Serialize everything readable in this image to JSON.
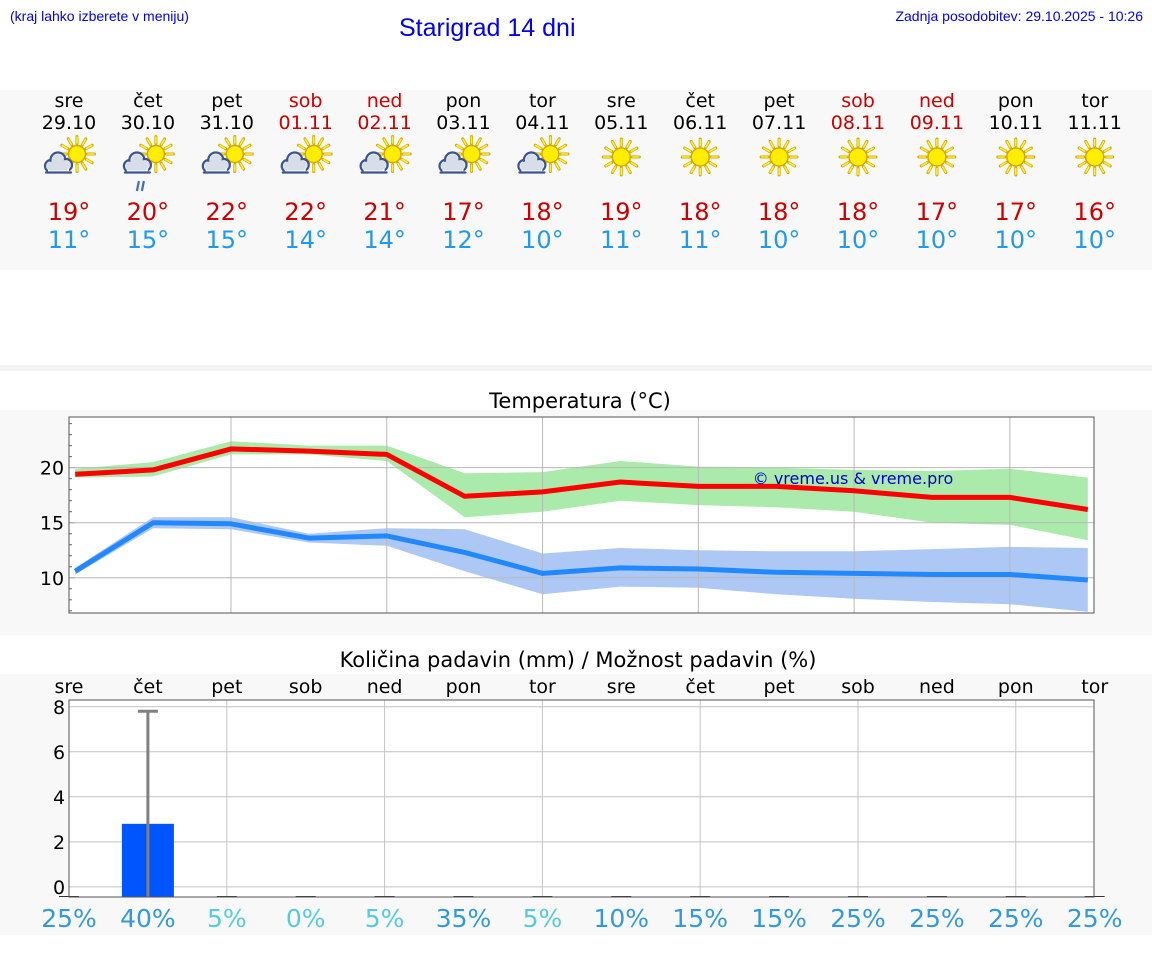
{
  "header": {
    "hint": "(kraj lahko izberete v meniju)",
    "title": "Starigrad 14 dni",
    "updated": "Zadnja posodobitev: 29.10.2025 - 10:26"
  },
  "colors": {
    "weekday": "#000000",
    "weekend": "#cc0000",
    "tmax": "#cc0000",
    "tmin": "#2299ee",
    "precip_bar": "#0055ff",
    "prob_low": "#55ccdd",
    "prob_high": "#3399dd",
    "watermark": "#0000cc"
  },
  "forecast": [
    {
      "day": "sre",
      "date": "29.10",
      "weekend": false,
      "icon": "sun-behind-cloud-icon",
      "tmax": "19°",
      "tmin": "11°"
    },
    {
      "day": "čet",
      "date": "30.10",
      "weekend": false,
      "icon": "sun-cloud-rain-icon",
      "tmax": "20°",
      "tmin": "15°"
    },
    {
      "day": "pet",
      "date": "31.10",
      "weekend": false,
      "icon": "sun-behind-cloud-icon",
      "tmax": "22°",
      "tmin": "15°"
    },
    {
      "day": "sob",
      "date": "01.11",
      "weekend": true,
      "icon": "sun-behind-cloud-icon",
      "tmax": "22°",
      "tmin": "14°"
    },
    {
      "day": "ned",
      "date": "02.11",
      "weekend": true,
      "icon": "sun-behind-cloud-icon",
      "tmax": "21°",
      "tmin": "14°"
    },
    {
      "day": "pon",
      "date": "03.11",
      "weekend": false,
      "icon": "sun-behind-cloud-icon",
      "tmax": "17°",
      "tmin": "12°"
    },
    {
      "day": "tor",
      "date": "04.11",
      "weekend": false,
      "icon": "sun-behind-cloud-icon",
      "tmax": "18°",
      "tmin": "10°"
    },
    {
      "day": "sre",
      "date": "05.11",
      "weekend": false,
      "icon": "sun-icon",
      "tmax": "19°",
      "tmin": "11°"
    },
    {
      "day": "čet",
      "date": "06.11",
      "weekend": false,
      "icon": "sun-icon",
      "tmax": "18°",
      "tmin": "11°"
    },
    {
      "day": "pet",
      "date": "07.11",
      "weekend": false,
      "icon": "sun-icon",
      "tmax": "18°",
      "tmin": "10°"
    },
    {
      "day": "sob",
      "date": "08.11",
      "weekend": true,
      "icon": "sun-icon",
      "tmax": "18°",
      "tmin": "10°"
    },
    {
      "day": "ned",
      "date": "09.11",
      "weekend": true,
      "icon": "sun-icon",
      "tmax": "17°",
      "tmin": "10°"
    },
    {
      "day": "pon",
      "date": "10.11",
      "weekend": false,
      "icon": "sun-icon",
      "tmax": "17°",
      "tmin": "10°"
    },
    {
      "day": "tor",
      "date": "11.11",
      "weekend": false,
      "icon": "sun-icon",
      "tmax": "16°",
      "tmin": "10°"
    }
  ],
  "chart_data": [
    {
      "type": "line",
      "title": "Temperatura (°C)",
      "watermark": "© vreme.us & vreme.pro",
      "x": [
        0,
        1,
        2,
        3,
        4,
        5,
        6,
        7,
        8,
        9,
        10,
        11,
        12,
        13
      ],
      "xlim": [
        -0.08,
        13.08
      ],
      "ylim": [
        6.8,
        24.6
      ],
      "yticks": [
        10,
        15,
        20
      ],
      "yticklabels": [
        "10",
        "15",
        "20"
      ],
      "grid": true,
      "series": [
        {
          "name": "max",
          "color": "#ff0000",
          "values": [
            19.4,
            19.8,
            21.7,
            21.5,
            21.2,
            17.4,
            17.8,
            18.7,
            18.3,
            18.3,
            17.9,
            17.3,
            17.3,
            16.2
          ],
          "band_low": [
            19.1,
            19.2,
            21.2,
            21.2,
            20.6,
            15.5,
            16.0,
            17.0,
            16.6,
            16.4,
            16.0,
            15.0,
            14.8,
            13.4
          ],
          "band_high": [
            19.9,
            20.5,
            22.4,
            22.0,
            22.0,
            19.5,
            19.6,
            20.6,
            20.1,
            20.0,
            19.8,
            19.7,
            19.9,
            19.1
          ],
          "band_color": "#aaeaaa"
        },
        {
          "name": "min",
          "color": "#2288ff",
          "values": [
            10.6,
            15.0,
            14.9,
            13.6,
            13.8,
            12.3,
            10.4,
            10.9,
            10.8,
            10.5,
            10.4,
            10.3,
            10.3,
            9.8
          ],
          "band_low": [
            10.3,
            14.5,
            14.4,
            13.2,
            12.9,
            10.6,
            8.5,
            9.2,
            9.1,
            8.5,
            8.1,
            7.8,
            7.6,
            6.9
          ],
          "band_high": [
            10.9,
            15.5,
            15.5,
            14.0,
            14.5,
            14.4,
            12.2,
            12.7,
            12.5,
            12.4,
            12.4,
            12.6,
            12.8,
            12.7
          ],
          "band_color": "#aec8f6"
        }
      ]
    },
    {
      "type": "bar",
      "title": "Količina padavin (mm) / Možnost padavin (%)",
      "categories": [
        "sre",
        "čet",
        "pet",
        "sob",
        "ned",
        "pon",
        "tor",
        "sre",
        "čet",
        "pet",
        "sob",
        "ned",
        "pon",
        "tor"
      ],
      "values": [
        0,
        2.8,
        0,
        0,
        0,
        0,
        0,
        0,
        0,
        0,
        0,
        0,
        0,
        0
      ],
      "error_high": [
        0,
        7.8,
        0,
        0,
        0,
        0,
        0,
        0,
        0,
        0,
        0,
        0,
        0,
        0
      ],
      "probability": [
        "25%",
        "40%",
        "5%",
        "0%",
        "5%",
        "35%",
        "5%",
        "10%",
        "15%",
        "15%",
        "25%",
        "25%",
        "25%",
        "25%"
      ],
      "ylim": [
        -0.45,
        8.3
      ],
      "yticks": [
        0,
        2,
        4,
        6,
        8
      ],
      "yticklabels": [
        "0",
        "2",
        "4",
        "6",
        "8"
      ],
      "grid": true
    }
  ]
}
